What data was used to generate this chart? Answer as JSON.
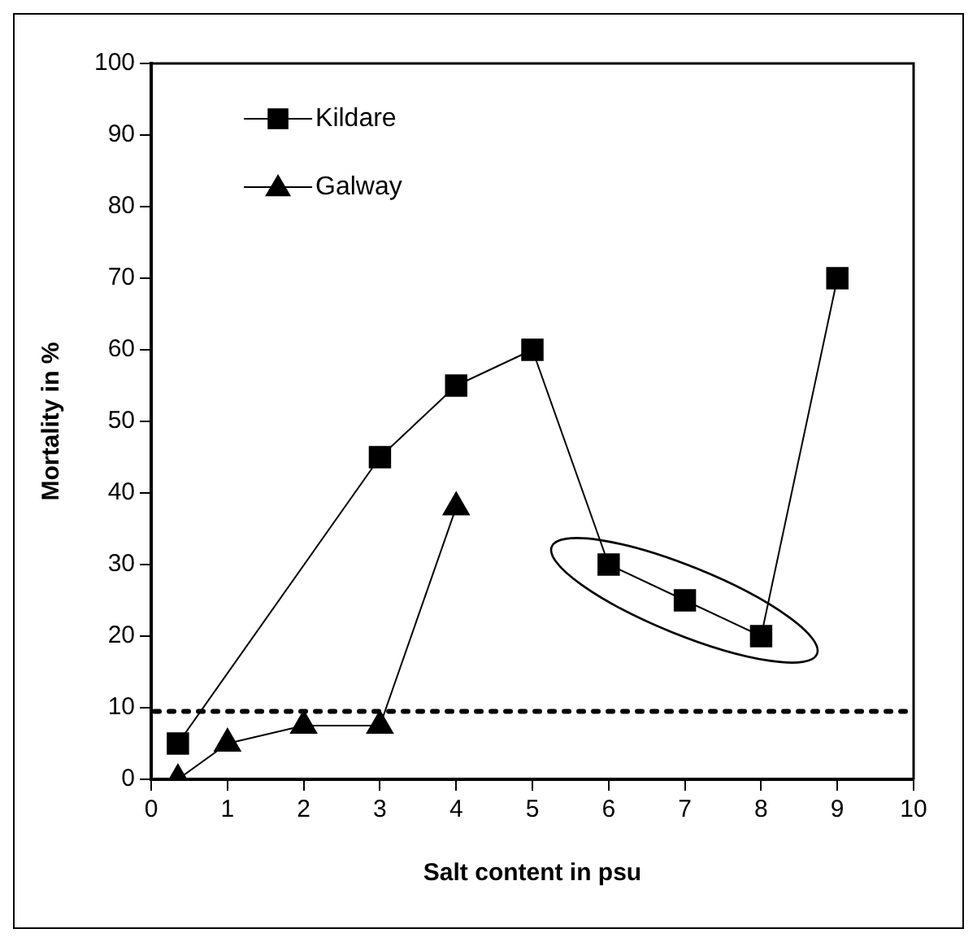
{
  "chart_data": {
    "type": "line",
    "xlabel": "Salt content in psu",
    "ylabel": "Mortality in %",
    "xlim": [
      0,
      10
    ],
    "xticks": [
      0,
      1,
      2,
      3,
      4,
      5,
      6,
      7,
      8,
      9,
      10
    ],
    "ylim": [
      0,
      100
    ],
    "yticks": [
      0,
      10,
      20,
      30,
      40,
      50,
      60,
      70,
      80,
      90,
      100
    ],
    "grid": false,
    "legend": "top left",
    "series": [
      {
        "name": "Kildare",
        "color": "#000000",
        "marker": "square",
        "x": [
          0.35,
          3,
          4,
          5,
          6,
          7,
          8,
          9
        ],
        "values": [
          5,
          45,
          55,
          60,
          30,
          25,
          20,
          70
        ]
      },
      {
        "name": "Galway",
        "color": "#000000",
        "marker": "triangle",
        "x": [
          0.35,
          1,
          2,
          3,
          4
        ],
        "values": [
          0,
          5,
          7.5,
          7.5,
          38
        ]
      }
    ],
    "ref_lines": [
      {
        "axis": "y",
        "value": 9.5,
        "color": "#000000",
        "line_style": "dotted"
      }
    ]
  }
}
